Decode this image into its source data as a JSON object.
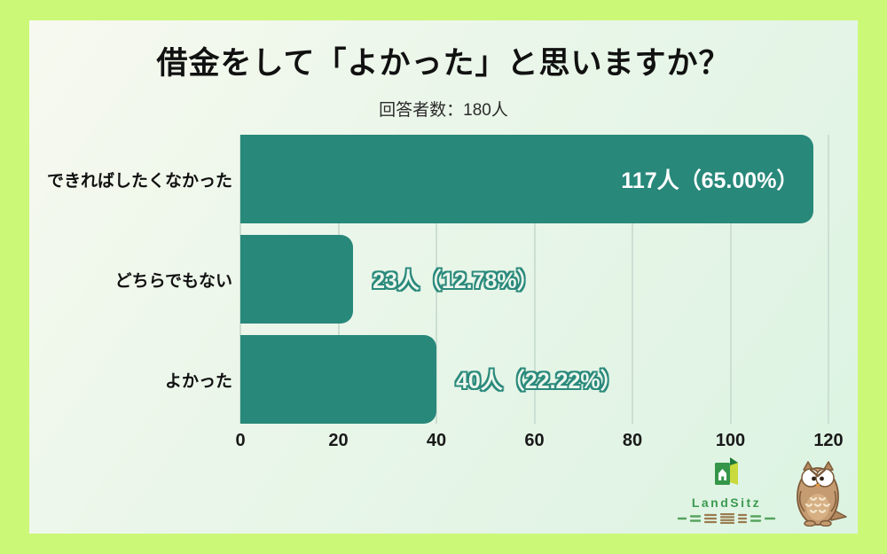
{
  "title": "借金をして「よかった」と思いますか？",
  "subtitle": "回答者数：180人",
  "chart_data": {
    "type": "bar",
    "orientation": "horizontal",
    "title": "借金をして「よかった」と思いますか？",
    "subtitle": "回答者数：180人",
    "total_respondents": 180,
    "categories": [
      "できればしたくなかった",
      "どちらでもない",
      "よかった"
    ],
    "values": [
      117,
      23,
      40
    ],
    "percentages": [
      65.0,
      12.78,
      22.22
    ],
    "value_labels": [
      "117人（65.00%）",
      "23人（12.78%）",
      "40人（22.22%）"
    ],
    "xlim": [
      0,
      120
    ],
    "x_ticks": [
      "0",
      "20",
      "40",
      "60",
      "80",
      "100",
      "120"
    ],
    "grid": true,
    "legend": false,
    "bar_color": "#28887a"
  },
  "branding": {
    "name": "LandSitz"
  },
  "colors": {
    "page_background": "#cbf877",
    "card_background_start": "#f7f9ef",
    "card_background_end": "#dcf3e2",
    "bar": "#28887a",
    "gridline": "#ccdfd2",
    "inside_value_text": "#ffffff",
    "outside_value_fill": "#edf7ee",
    "outside_value_outline": "#2b8a7c",
    "logo_green": "#3c9a50"
  }
}
